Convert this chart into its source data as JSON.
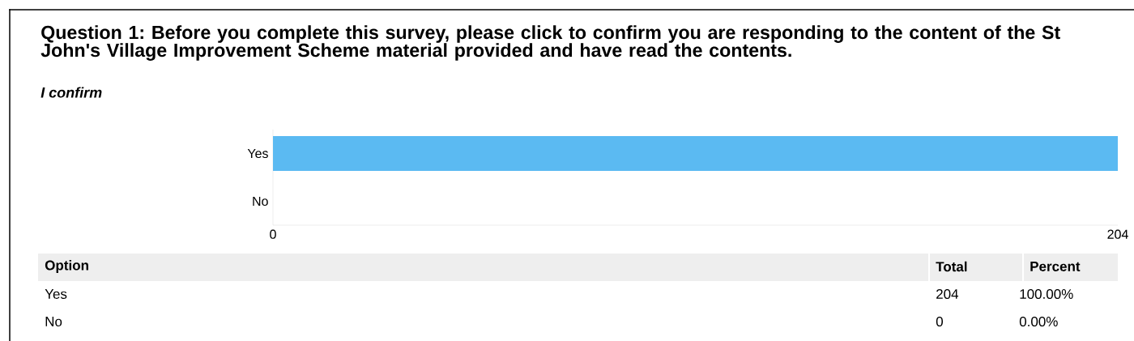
{
  "chart_data": {
    "type": "bar",
    "orientation": "horizontal",
    "title": "Question 1: Before you complete this survey, please click to confirm you are responding to the content of the St John's Village Improvement Scheme material provided and have read the contents.",
    "subtitle": "I confirm",
    "categories": [
      "Yes",
      "No"
    ],
    "values": [
      204,
      0
    ],
    "color": "#5bbaf2",
    "xlim": [
      0,
      204
    ],
    "xticks": [
      0,
      204
    ],
    "annotations": [
      "Option",
      "Total",
      "Percent",
      "204",
      "100.00%",
      "0",
      "0.00%"
    ]
  }
}
